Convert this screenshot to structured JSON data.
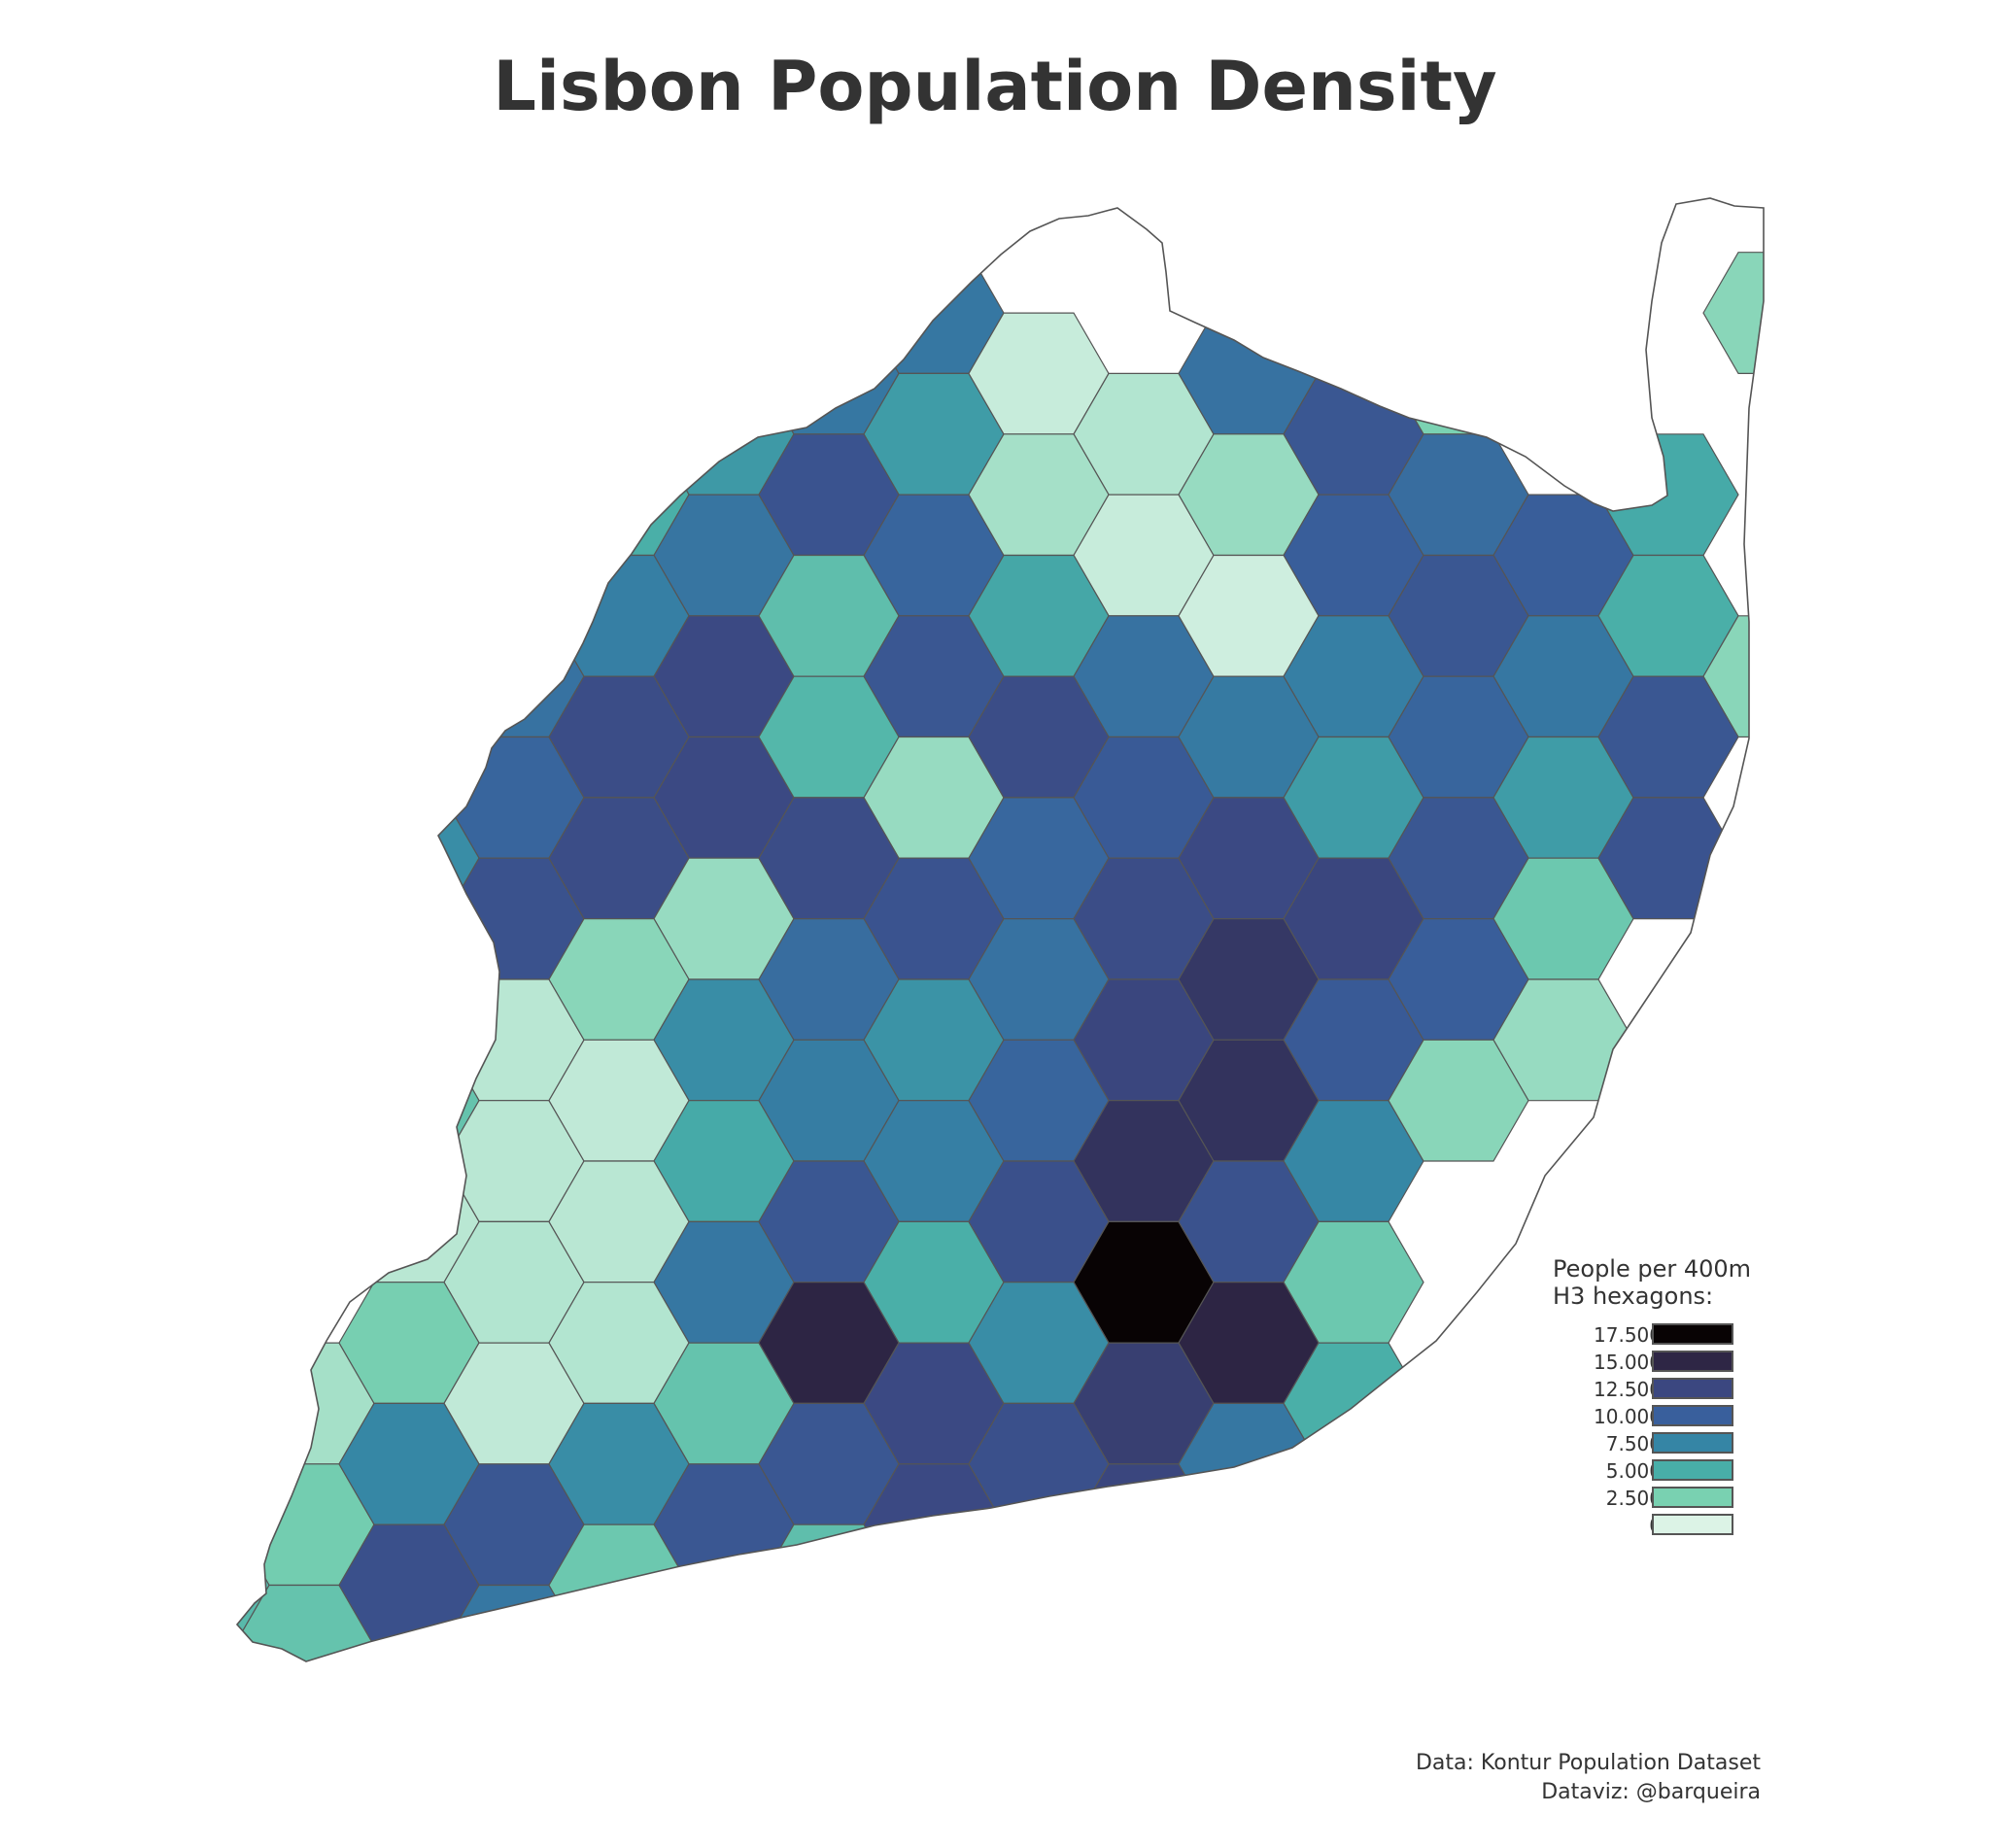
{
  "title": "Lisbon Population Density",
  "legend": {
    "title_line1": "People per 400m",
    "title_line2": "H3 hexagons:",
    "bins": [
      {
        "label": "17.500",
        "color": "#080304"
      },
      {
        "label": "15.000",
        "color": "#2e2645"
      },
      {
        "label": "12.500",
        "color": "#3b4780"
      },
      {
        "label": "10.000",
        "color": "#395f9c"
      },
      {
        "label": "7.500",
        "color": "#3585a5"
      },
      {
        "label": "5.000",
        "color": "#48aea8"
      },
      {
        "label": "2.500",
        "color": "#79d1b1"
      },
      {
        "label": "0",
        "color": "#dcf3e6"
      }
    ]
  },
  "credits": {
    "line1": "Data: Kontur Population Dataset",
    "line2": "Dataviz: @barqueira"
  },
  "map_data": {
    "region": "Lisbon",
    "hexagon_levels": [
      [
        null,
        null,
        null,
        null,
        null,
        null,
        null,
        null,
        null,
        null,
        null,
        null,
        null,
        null,
        null,
        null
      ],
      [
        null,
        null,
        null,
        null,
        null,
        null,
        0.52,
        0.48,
        null,
        null,
        null,
        null,
        null,
        null,
        null,
        0.12
      ],
      [
        null,
        null,
        null,
        null,
        null,
        0.36,
        0.48,
        0.35,
        0.03,
        0.06,
        0.5,
        0.62,
        0.14,
        null,
        null,
        null
      ],
      [
        null,
        null,
        null,
        0.5,
        0.28,
        0.49,
        0.64,
        0.55,
        0.08,
        0.03,
        0.1,
        0.58,
        0.52,
        0.58,
        0.3,
        null
      ],
      [
        null,
        null,
        0.55,
        0.5,
        0.45,
        0.7,
        0.22,
        0.62,
        0.31,
        0.5,
        0.02,
        0.45,
        0.62,
        0.48,
        0.28,
        0.12
      ],
      [
        null,
        null,
        0.3,
        0.55,
        0.68,
        0.7,
        0.25,
        0.1,
        0.68,
        0.6,
        0.47,
        0.35,
        0.55,
        0.35,
        0.62,
        null
      ],
      [
        null,
        0.94,
        0.4,
        0.65,
        0.68,
        0.1,
        0.68,
        0.64,
        0.54,
        0.68,
        0.7,
        0.72,
        0.62,
        0.18,
        0.64,
        null
      ],
      [
        null,
        0.6,
        0.12,
        0.05,
        0.12,
        0.4,
        0.52,
        0.38,
        0.5,
        0.72,
        0.78,
        0.6,
        0.58,
        0.1,
        null,
        null
      ],
      [
        null,
        null,
        0.2,
        0.05,
        0.04,
        0.3,
        0.46,
        0.45,
        0.55,
        0.8,
        0.8,
        0.42,
        0.12,
        null,
        null,
        null
      ],
      [
        null,
        null,
        0.05,
        0.06,
        0.05,
        0.48,
        0.62,
        0.28,
        0.66,
        1.0,
        0.65,
        0.18,
        null,
        null,
        null,
        null
      ],
      [
        null,
        0.08,
        0.15,
        0.04,
        0.06,
        0.2,
        0.86,
        0.7,
        0.4,
        0.75,
        0.86,
        0.28,
        null,
        null,
        null,
        null
      ],
      [
        null,
        0.16,
        0.42,
        0.62,
        0.4,
        0.62,
        0.62,
        0.7,
        0.66,
        0.72,
        0.48,
        null,
        null,
        null,
        null,
        null
      ],
      [
        0.24,
        0.2,
        0.66,
        0.48,
        0.18,
        0.05,
        0.22,
        0.2,
        0.14,
        null,
        null,
        null,
        null,
        null,
        null,
        null
      ],
      [
        0.22,
        0.12,
        0.16,
        null,
        null,
        null,
        null,
        null,
        null,
        null,
        null,
        null,
        null,
        null,
        null,
        null
      ]
    ]
  }
}
